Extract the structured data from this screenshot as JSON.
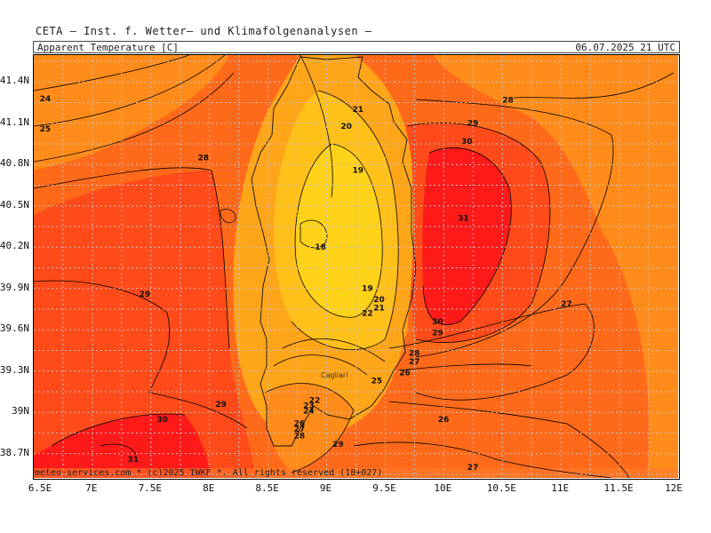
{
  "header": {
    "provider": "CETA – Inst. f. Wetter– und Klimafolgenanalysen –",
    "parameter": "Apparent_Temperature [C]",
    "valid_time": "06.07.2025 21 UTC"
  },
  "footer": {
    "copyright": "meteo-services.com * (c)2025 IWKF *. All rights reserved (18+027)"
  },
  "lat_labels": [
    "41.4N",
    "41.1N",
    "40.8N",
    "40.5N",
    "40.2N",
    "39.9N",
    "39.6N",
    "39.3N",
    "39N",
    "38.7N"
  ],
  "lon_labels": [
    "6.5E",
    "7E",
    "7.5E",
    "8E",
    "8.5E",
    "9E",
    "9.5E",
    "10E",
    "10.5E",
    "11E",
    "11.5E",
    "12E"
  ],
  "place_label": "Cagliari",
  "contour_labels": [
    {
      "text": "24",
      "lon": 6.55,
      "lat": 41.28
    },
    {
      "text": "25",
      "lon": 6.55,
      "lat": 41.06
    },
    {
      "text": "28",
      "lon": 7.9,
      "lat": 40.85
    },
    {
      "text": "29",
      "lon": 7.4,
      "lat": 39.86
    },
    {
      "text": "29",
      "lon": 8.05,
      "lat": 39.06
    },
    {
      "text": "30",
      "lon": 7.55,
      "lat": 38.95
    },
    {
      "text": "31",
      "lon": 7.3,
      "lat": 38.66
    },
    {
      "text": "21",
      "lon": 9.22,
      "lat": 41.2
    },
    {
      "text": "20",
      "lon": 9.12,
      "lat": 41.08
    },
    {
      "text": "19",
      "lon": 9.22,
      "lat": 40.76
    },
    {
      "text": "18",
      "lon": 8.9,
      "lat": 40.2
    },
    {
      "text": "19",
      "lon": 9.3,
      "lat": 39.9
    },
    {
      "text": "20",
      "lon": 9.4,
      "lat": 39.82
    },
    {
      "text": "21",
      "lon": 9.4,
      "lat": 39.76
    },
    {
      "text": "22",
      "lon": 9.3,
      "lat": 39.72
    },
    {
      "text": "28",
      "lon": 10.5,
      "lat": 41.27
    },
    {
      "text": "29",
      "lon": 10.2,
      "lat": 41.1
    },
    {
      "text": "30",
      "lon": 10.15,
      "lat": 40.97
    },
    {
      "text": "31",
      "lon": 10.12,
      "lat": 40.41
    },
    {
      "text": "30",
      "lon": 9.9,
      "lat": 39.66
    },
    {
      "text": "29",
      "lon": 9.9,
      "lat": 39.58
    },
    {
      "text": "28",
      "lon": 9.7,
      "lat": 39.43
    },
    {
      "text": "27",
      "lon": 9.7,
      "lat": 39.37
    },
    {
      "text": "26",
      "lon": 9.62,
      "lat": 39.29
    },
    {
      "text": "25",
      "lon": 9.38,
      "lat": 39.23
    },
    {
      "text": "27",
      "lon": 11.0,
      "lat": 39.79
    },
    {
      "text": "26",
      "lon": 9.95,
      "lat": 38.95
    },
    {
      "text": "27",
      "lon": 10.2,
      "lat": 38.6
    },
    {
      "text": "22",
      "lon": 8.85,
      "lat": 39.09
    },
    {
      "text": "23",
      "lon": 8.8,
      "lat": 39.05
    },
    {
      "text": "24",
      "lon": 8.8,
      "lat": 39.01
    },
    {
      "text": "26",
      "lon": 8.72,
      "lat": 38.92
    },
    {
      "text": "27",
      "lon": 8.72,
      "lat": 38.88
    },
    {
      "text": "28",
      "lon": 8.72,
      "lat": 38.83
    },
    {
      "text": "29",
      "lon": 9.05,
      "lat": 38.77
    }
  ],
  "colors": {
    "c24_26": "#ff8c1a",
    "c27_28": "#ff6a1a",
    "c29": "#ff4a1a",
    "c30_31": "#ff1a1a",
    "c22_23": "#ffa51a",
    "c20_21": "#ffc01a",
    "c18_19": "#ffd21a"
  }
}
